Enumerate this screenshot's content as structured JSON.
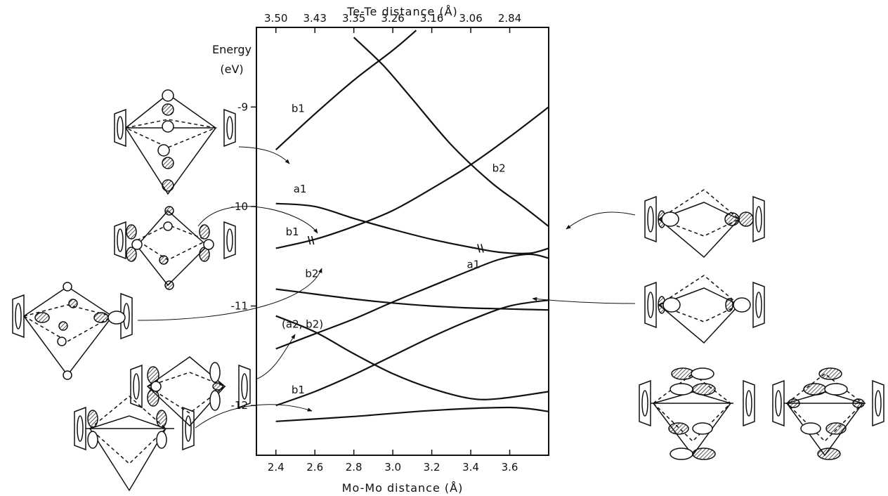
{
  "chart_data": {
    "type": "line",
    "title": "",
    "xlabel": "Mo-Mo distance (Å)",
    "x2label": "Te-Te distance (Å)",
    "ylabel_line1": "Energy",
    "ylabel_line2": "(eV)",
    "xlim": [
      2.3,
      3.8
    ],
    "ylim": [
      -12.5,
      -8.2
    ],
    "x_ticks": [
      2.4,
      2.6,
      2.8,
      3.0,
      3.2,
      3.4,
      3.6
    ],
    "x_tick_labels": [
      "2.4",
      "2.6",
      "2.8",
      "3.0",
      "3.2",
      "3.4",
      "3.6"
    ],
    "y_ticks": [
      -9,
      -10,
      -11,
      -12
    ],
    "y_tick_labels": [
      "-9",
      "-10",
      "-11",
      "-12"
    ],
    "top_ticks": [
      2.4,
      2.6,
      2.8,
      3.0,
      3.2,
      3.4,
      3.6
    ],
    "top_tick_labels": [
      "3.50",
      "3.43",
      "3.35",
      "3.26",
      "3.16",
      "3.06",
      "2.84"
    ],
    "grid": false,
    "legend": "none",
    "series": [
      {
        "name": "b1",
        "x": [
          2.4,
          2.6,
          2.8,
          3.0,
          3.12
        ],
        "y": [
          -9.43,
          -9.07,
          -8.73,
          -8.43,
          -8.23
        ]
      },
      {
        "name": "b2",
        "x": [
          2.8,
          2.95,
          3.1,
          3.3,
          3.5,
          3.65,
          3.8
        ],
        "y": [
          -8.3,
          -8.58,
          -8.92,
          -9.38,
          -9.75,
          -9.97,
          -10.2
        ]
      },
      {
        "x": [
          2.4,
          2.6,
          2.8,
          3.0,
          3.2,
          3.4,
          3.6,
          3.8
        ],
        "y": [
          -10.42,
          -10.33,
          -10.2,
          -10.04,
          -9.82,
          -9.58,
          -9.3,
          -9.0
        ]
      },
      {
        "name": "a1",
        "x": [
          2.4,
          2.6,
          2.8,
          3.0,
          3.2,
          3.4,
          3.55,
          3.7,
          3.8
        ],
        "y": [
          -9.97,
          -10.0,
          -10.12,
          -10.23,
          -10.33,
          -10.41,
          -10.46,
          -10.47,
          -10.42
        ]
      },
      {
        "x": [
          2.4,
          2.6,
          2.8,
          3.0,
          3.2,
          3.4,
          3.55,
          3.7,
          3.8
        ],
        "y": [
          -11.43,
          -11.28,
          -11.13,
          -10.96,
          -10.8,
          -10.64,
          -10.53,
          -10.48,
          -10.52
        ]
      },
      {
        "name": "b2",
        "x": [
          2.4,
          2.6,
          2.8,
          3.0,
          3.2,
          3.4,
          3.6,
          3.8
        ],
        "y": [
          -10.83,
          -10.88,
          -10.93,
          -10.97,
          -11.0,
          -11.02,
          -11.03,
          -11.04
        ]
      },
      {
        "name": "(a2,b2)",
        "x": [
          2.4,
          2.6,
          2.8,
          3.0,
          3.2,
          3.4,
          3.55,
          3.8
        ],
        "y": [
          -11.1,
          -11.26,
          -11.48,
          -11.68,
          -11.83,
          -11.93,
          -11.93,
          -11.86
        ]
      },
      {
        "name": "b1",
        "x": [
          2.4,
          2.6,
          2.8,
          3.0,
          3.2,
          3.4,
          3.6,
          3.8
        ],
        "y": [
          -12.0,
          -11.86,
          -11.69,
          -11.5,
          -11.31,
          -11.14,
          -11.0,
          -10.94
        ]
      },
      {
        "x": [
          2.4,
          2.8,
          3.2,
          3.6,
          3.8
        ],
        "y": [
          -12.16,
          -12.11,
          -12.05,
          -12.02,
          -12.06
        ]
      }
    ],
    "labels": [
      {
        "text": "b1",
        "x": 2.48,
        "y": -9.05
      },
      {
        "text": "a1",
        "x": 2.49,
        "y": -9.86
      },
      {
        "text": "b1",
        "x": 2.45,
        "y": -10.29
      },
      {
        "text": "b2",
        "x": 3.51,
        "y": -9.65
      },
      {
        "text": "a1",
        "x": 3.38,
        "y": -10.62
      },
      {
        "text": "b2",
        "x": 2.55,
        "y": -10.71
      },
      {
        "text": "(a2, b2)",
        "x": 2.43,
        "y": -11.22
      },
      {
        "text": "b1",
        "x": 2.48,
        "y": -11.88
      }
    ],
    "annotations": [
      {
        "text": "a1",
        "role": "occupied-level-marker",
        "x": 3.45,
        "y": -10.42
      },
      {
        "text": "b1",
        "role": "occupied-level-marker",
        "x": 2.58,
        "y": -10.34
      }
    ]
  }
}
